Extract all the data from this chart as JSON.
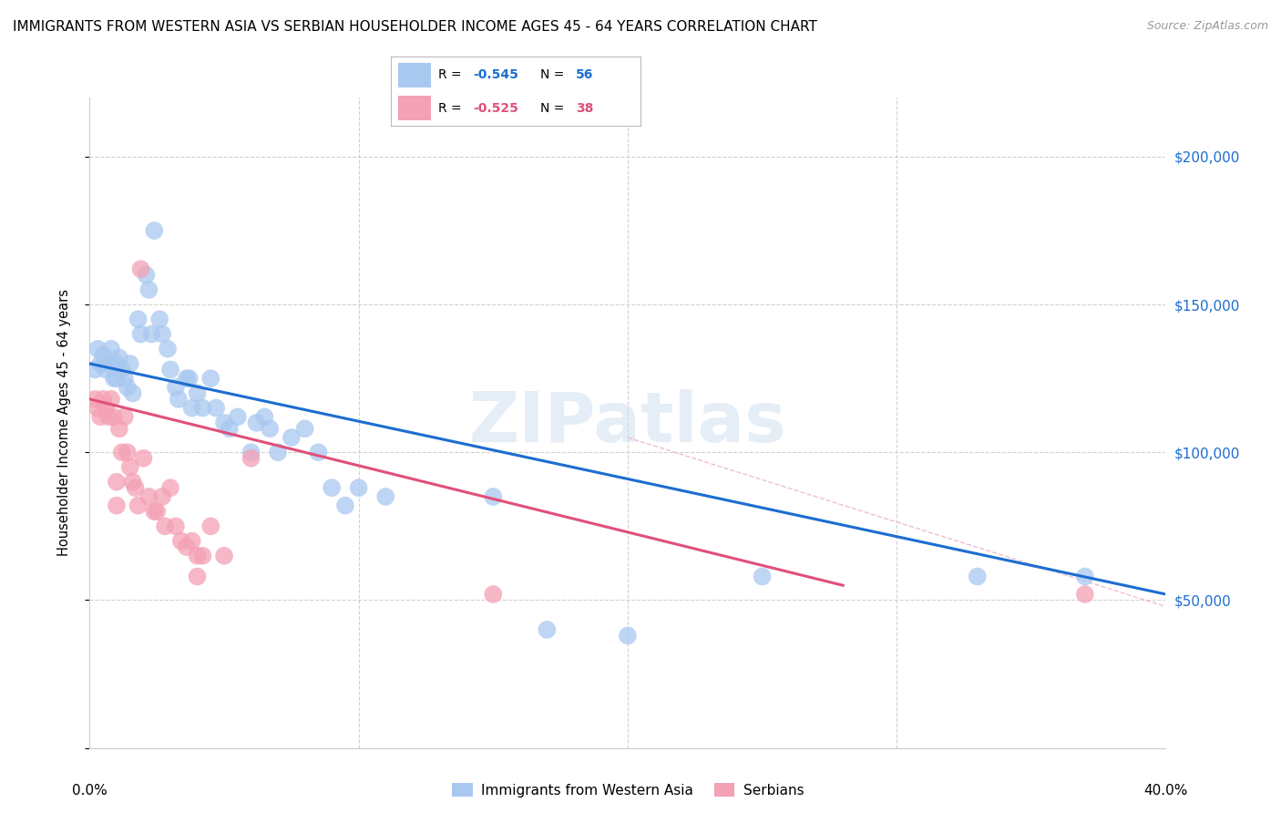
{
  "title": "IMMIGRANTS FROM WESTERN ASIA VS SERBIAN HOUSEHOLDER INCOME AGES 45 - 64 YEARS CORRELATION CHART",
  "source": "Source: ZipAtlas.com",
  "ylabel": "Householder Income Ages 45 - 64 years",
  "xlim": [
    0.0,
    0.4
  ],
  "ylim": [
    0,
    220000
  ],
  "blue_R": "-0.545",
  "blue_N": "56",
  "pink_R": "-0.525",
  "pink_N": "38",
  "legend_label_blue": "Immigrants from Western Asia",
  "legend_label_pink": "Serbians",
  "watermark": "ZIPatlas",
  "blue_color": "#A8C8F0",
  "pink_color": "#F4A0B5",
  "blue_line_color": "#1C6DD0",
  "pink_line_color": "#E0507A",
  "blue_dots": [
    [
      0.002,
      128000
    ],
    [
      0.003,
      135000
    ],
    [
      0.004,
      130000
    ],
    [
      0.005,
      133000
    ],
    [
      0.006,
      128000
    ],
    [
      0.007,
      130000
    ],
    [
      0.008,
      135000
    ],
    [
      0.009,
      125000
    ],
    [
      0.01,
      130000
    ],
    [
      0.01,
      125000
    ],
    [
      0.011,
      132000
    ],
    [
      0.012,
      128000
    ],
    [
      0.013,
      125000
    ],
    [
      0.014,
      122000
    ],
    [
      0.015,
      130000
    ],
    [
      0.016,
      120000
    ],
    [
      0.018,
      145000
    ],
    [
      0.019,
      140000
    ],
    [
      0.021,
      160000
    ],
    [
      0.022,
      155000
    ],
    [
      0.023,
      140000
    ],
    [
      0.024,
      175000
    ],
    [
      0.026,
      145000
    ],
    [
      0.027,
      140000
    ],
    [
      0.029,
      135000
    ],
    [
      0.03,
      128000
    ],
    [
      0.032,
      122000
    ],
    [
      0.033,
      118000
    ],
    [
      0.036,
      125000
    ],
    [
      0.037,
      125000
    ],
    [
      0.038,
      115000
    ],
    [
      0.04,
      120000
    ],
    [
      0.042,
      115000
    ],
    [
      0.045,
      125000
    ],
    [
      0.047,
      115000
    ],
    [
      0.05,
      110000
    ],
    [
      0.052,
      108000
    ],
    [
      0.055,
      112000
    ],
    [
      0.06,
      100000
    ],
    [
      0.062,
      110000
    ],
    [
      0.065,
      112000
    ],
    [
      0.067,
      108000
    ],
    [
      0.07,
      100000
    ],
    [
      0.075,
      105000
    ],
    [
      0.08,
      108000
    ],
    [
      0.085,
      100000
    ],
    [
      0.09,
      88000
    ],
    [
      0.095,
      82000
    ],
    [
      0.1,
      88000
    ],
    [
      0.11,
      85000
    ],
    [
      0.15,
      85000
    ],
    [
      0.2,
      38000
    ],
    [
      0.25,
      58000
    ],
    [
      0.33,
      58000
    ],
    [
      0.37,
      58000
    ],
    [
      0.17,
      40000
    ]
  ],
  "pink_dots": [
    [
      0.002,
      118000
    ],
    [
      0.003,
      115000
    ],
    [
      0.004,
      112000
    ],
    [
      0.005,
      118000
    ],
    [
      0.006,
      115000
    ],
    [
      0.007,
      112000
    ],
    [
      0.008,
      118000
    ],
    [
      0.009,
      112000
    ],
    [
      0.01,
      90000
    ],
    [
      0.01,
      82000
    ],
    [
      0.011,
      108000
    ],
    [
      0.012,
      100000
    ],
    [
      0.013,
      112000
    ],
    [
      0.014,
      100000
    ],
    [
      0.015,
      95000
    ],
    [
      0.016,
      90000
    ],
    [
      0.017,
      88000
    ],
    [
      0.018,
      82000
    ],
    [
      0.019,
      162000
    ],
    [
      0.02,
      98000
    ],
    [
      0.022,
      85000
    ],
    [
      0.024,
      80000
    ],
    [
      0.025,
      80000
    ],
    [
      0.027,
      85000
    ],
    [
      0.028,
      75000
    ],
    [
      0.03,
      88000
    ],
    [
      0.032,
      75000
    ],
    [
      0.034,
      70000
    ],
    [
      0.036,
      68000
    ],
    [
      0.038,
      70000
    ],
    [
      0.04,
      65000
    ],
    [
      0.04,
      58000
    ],
    [
      0.042,
      65000
    ],
    [
      0.045,
      75000
    ],
    [
      0.05,
      65000
    ],
    [
      0.06,
      98000
    ],
    [
      0.15,
      52000
    ],
    [
      0.37,
      52000
    ]
  ],
  "blue_line_x": [
    0.0,
    0.4
  ],
  "blue_line_y": [
    130000,
    52000
  ],
  "pink_line_x": [
    0.0,
    0.28
  ],
  "pink_line_y": [
    118000,
    55000
  ],
  "dashed_line_x": [
    0.2,
    0.55
  ],
  "dashed_line_y": [
    105000,
    5000
  ],
  "grid_color": "#CCCCCC",
  "bg_color": "#FFFFFF",
  "xtick_positions": [
    0.0,
    0.1,
    0.2,
    0.3,
    0.4
  ],
  "ytick_positions": [
    0,
    50000,
    100000,
    150000,
    200000
  ],
  "ytick_labels_right": [
    "",
    "$50,000",
    "$100,000",
    "$150,000",
    "$200,000"
  ]
}
